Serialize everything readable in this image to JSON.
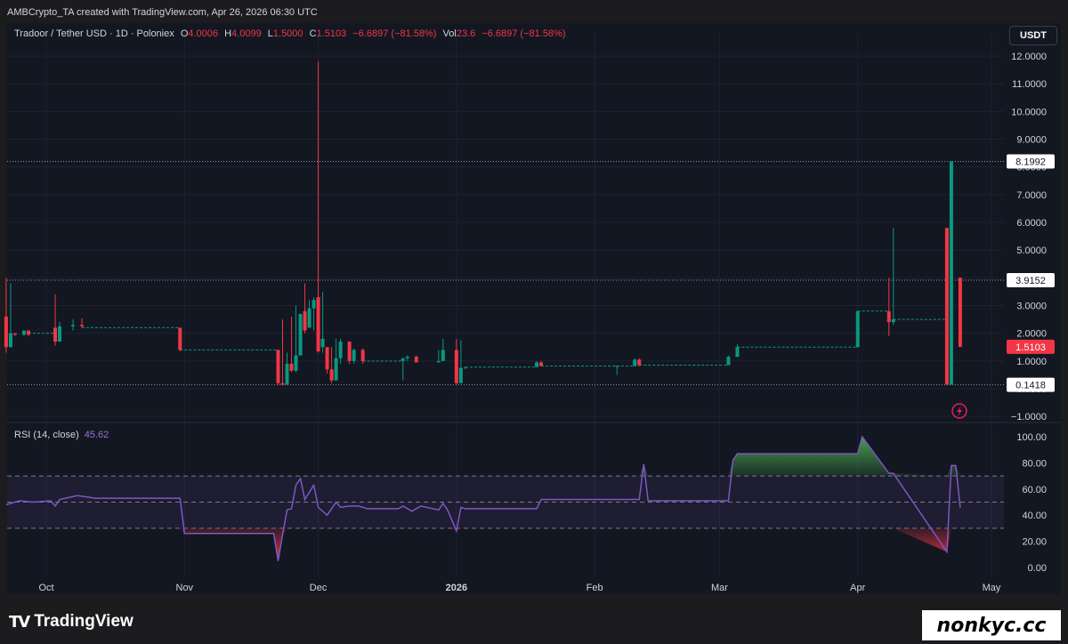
{
  "credit": "AMBCrypto_TA created with TradingView.com, Apr 26, 2026 06:30 UTC",
  "header": {
    "symbol": "Tradoor / Tether USD · 1D · Poloniex",
    "o_label": "O",
    "o_value": "4.0006",
    "h_label": "H",
    "h_value": "4.0099",
    "l_label": "L",
    "l_value": "1.5000",
    "c_label": "C",
    "c_value": "1.5103",
    "change": "−6.6897 (−81.58%)",
    "vol_label": "Vol",
    "vol_value": "23.6",
    "vol_change": "−6.6897 (−81.58%)",
    "currency_button": "USDT"
  },
  "colors": {
    "up": "#089981",
    "down": "#f23645",
    "rsi": "#7e57c2",
    "background": "#131722"
  },
  "chart_data": [
    {
      "type": "candlestick",
      "title": "Tradoor / Tether USD · 1D · Poloniex",
      "ylim": [
        -1.0,
        12.0
      ],
      "y_ticks": [
        "12.0000",
        "11.0000",
        "10.0000",
        "9.0000",
        "8.0000",
        "7.0000",
        "6.0000",
        "5.0000",
        "4.0000",
        "3.0000",
        "2.0000",
        "1.0000",
        "0.0000",
        "−1.0000"
      ],
      "x_ticks": [
        "Oct",
        "Nov",
        "Dec",
        "2026",
        "Feb",
        "Mar",
        "Apr",
        "May"
      ],
      "price_labels": [
        {
          "value": "8.1992",
          "kind": "line"
        },
        {
          "value": "3.9152",
          "kind": "line"
        },
        {
          "value": "1.5103",
          "kind": "last"
        },
        {
          "value": "0.1418",
          "kind": "line"
        }
      ],
      "candles": [
        {
          "date": "2025-09-22",
          "o": 2.6,
          "h": 4.0,
          "l": 1.3,
          "c": 1.5
        },
        {
          "date": "2025-09-23",
          "o": 1.5,
          "h": 3.8,
          "l": 1.5,
          "c": 2.0
        },
        {
          "date": "2025-09-24",
          "o": 2.0,
          "h": 2.0,
          "l": 1.9,
          "c": 1.95
        },
        {
          "date": "2025-09-26",
          "o": 1.95,
          "h": 2.1,
          "l": 1.9,
          "c": 2.1
        },
        {
          "date": "2025-09-27",
          "o": 2.1,
          "h": 2.1,
          "l": 1.9,
          "c": 1.95
        },
        {
          "date": "2025-10-03",
          "o": 2.2,
          "h": 3.4,
          "l": 1.55,
          "c": 1.7
        },
        {
          "date": "2025-10-04",
          "o": 1.7,
          "h": 2.4,
          "l": 1.7,
          "c": 2.25
        },
        {
          "date": "2025-10-07",
          "o": 2.25,
          "h": 2.5,
          "l": 2.1,
          "c": 2.3
        },
        {
          "date": "2025-10-09",
          "o": 2.3,
          "h": 2.55,
          "l": 2.2,
          "c": 2.25
        },
        {
          "date": "2025-10-31",
          "o": 2.2,
          "h": 2.2,
          "l": 1.35,
          "c": 1.4
        },
        {
          "date": "2025-11-22",
          "o": 1.4,
          "h": 1.4,
          "l": 0.15,
          "c": 0.2
        },
        {
          "date": "2025-11-23",
          "o": 0.2,
          "h": 2.5,
          "l": 0.12,
          "c": 0.14
        },
        {
          "date": "2025-11-24",
          "o": 0.15,
          "h": 1.3,
          "l": 0.15,
          "c": 0.9
        },
        {
          "date": "2025-11-25",
          "o": 0.9,
          "h": 2.6,
          "l": 0.6,
          "c": 0.65
        },
        {
          "date": "2025-11-26",
          "o": 0.65,
          "h": 3.0,
          "l": 0.6,
          "c": 1.2
        },
        {
          "date": "2025-11-27",
          "o": 1.2,
          "h": 2.7,
          "l": 1.2,
          "c": 2.7
        },
        {
          "date": "2025-11-28",
          "o": 2.8,
          "h": 3.8,
          "l": 2.0,
          "c": 2.1
        },
        {
          "date": "2025-11-29",
          "o": 2.2,
          "h": 3.2,
          "l": 2.2,
          "c": 2.9
        },
        {
          "date": "2025-11-30",
          "o": 2.9,
          "h": 3.3,
          "l": 2.1,
          "c": 3.2
        },
        {
          "date": "2025-12-01",
          "o": 3.3,
          "h": 11.8,
          "l": 1.3,
          "c": 1.35
        },
        {
          "date": "2025-12-02",
          "o": 1.5,
          "h": 3.5,
          "l": 1.3,
          "c": 1.8
        },
        {
          "date": "2025-12-03",
          "o": 1.5,
          "h": 1.5,
          "l": 0.55,
          "c": 0.7
        },
        {
          "date": "2025-12-04",
          "o": 0.7,
          "h": 1.5,
          "l": 0.2,
          "c": 0.3
        },
        {
          "date": "2025-12-05",
          "o": 0.3,
          "h": 1.8,
          "l": 0.3,
          "c": 1.1
        },
        {
          "date": "2025-12-06",
          "o": 1.1,
          "h": 1.8,
          "l": 0.9,
          "c": 1.7
        },
        {
          "date": "2025-12-08",
          "o": 1.7,
          "h": 1.7,
          "l": 0.9,
          "c": 1.0
        },
        {
          "date": "2025-12-09",
          "o": 1.0,
          "h": 1.45,
          "l": 0.9,
          "c": 1.4
        },
        {
          "date": "2025-12-11",
          "o": 1.4,
          "h": 1.45,
          "l": 0.9,
          "c": 1.0
        },
        {
          "date": "2025-12-20",
          "o": 1.0,
          "h": 1.1,
          "l": 0.3,
          "c": 1.1
        },
        {
          "date": "2025-12-21",
          "o": 1.1,
          "h": 1.2,
          "l": 1.0,
          "c": 1.15
        },
        {
          "date": "2025-12-23",
          "o": 1.15,
          "h": 1.2,
          "l": 0.95,
          "c": 0.95
        },
        {
          "date": "2025-12-28",
          "o": 0.95,
          "h": 1.4,
          "l": 0.95,
          "c": 1.0
        },
        {
          "date": "2025-12-29",
          "o": 1.0,
          "h": 1.8,
          "l": 1.0,
          "c": 1.4
        },
        {
          "date": "2026-01-01",
          "o": 1.4,
          "h": 1.8,
          "l": 0.15,
          "c": 0.2
        },
        {
          "date": "2026-01-02",
          "o": 0.2,
          "h": 1.75,
          "l": 0.2,
          "c": 0.75
        },
        {
          "date": "2026-01-03",
          "o": 0.75,
          "h": 0.8,
          "l": 0.7,
          "c": 0.78
        },
        {
          "date": "2026-01-19",
          "o": 0.78,
          "h": 1.0,
          "l": 0.78,
          "c": 0.95
        },
        {
          "date": "2026-01-20",
          "o": 0.95,
          "h": 1.0,
          "l": 0.8,
          "c": 0.82
        },
        {
          "date": "2026-02-06",
          "o": 0.82,
          "h": 0.82,
          "l": 0.5,
          "c": 0.82
        },
        {
          "date": "2026-02-10",
          "o": 0.82,
          "h": 1.1,
          "l": 0.8,
          "c": 1.05
        },
        {
          "date": "2026-02-11",
          "o": 1.05,
          "h": 1.1,
          "l": 0.8,
          "c": 0.85
        },
        {
          "date": "2026-03-03",
          "o": 0.85,
          "h": 1.2,
          "l": 0.85,
          "c": 1.15
        },
        {
          "date": "2026-03-05",
          "o": 1.15,
          "h": 1.6,
          "l": 1.15,
          "c": 1.5
        },
        {
          "date": "2026-04-01",
          "o": 1.5,
          "h": 2.8,
          "l": 1.5,
          "c": 2.8
        },
        {
          "date": "2026-04-08",
          "o": 2.8,
          "h": 4.0,
          "l": 1.9,
          "c": 2.4
        },
        {
          "date": "2026-04-09",
          "o": 2.4,
          "h": 5.8,
          "l": 2.3,
          "c": 2.5
        },
        {
          "date": "2026-04-21",
          "o": 5.8,
          "h": 5.8,
          "l": 0.15,
          "c": 0.15
        },
        {
          "date": "2026-04-22",
          "o": 0.15,
          "h": 8.2,
          "l": 0.14,
          "c": 8.2
        },
        {
          "date": "2026-04-24",
          "o": 4.0006,
          "h": 4.0099,
          "l": 1.5,
          "c": 1.5103
        }
      ],
      "dashed_levels": [
        {
          "from": "2025-09-27",
          "to": "2025-10-03",
          "value": 2.0
        },
        {
          "from": "2025-10-09",
          "to": "2025-10-31",
          "value": 2.2
        },
        {
          "from": "2025-10-31",
          "to": "2025-11-22",
          "value": 1.4
        },
        {
          "from": "2025-12-11",
          "to": "2025-12-20",
          "value": 1.0
        },
        {
          "from": "2026-01-03",
          "to": "2026-01-19",
          "value": 0.78
        },
        {
          "from": "2026-01-20",
          "to": "2026-02-10",
          "value": 0.82
        },
        {
          "from": "2026-02-11",
          "to": "2026-03-03",
          "value": 0.85
        },
        {
          "from": "2026-03-05",
          "to": "2026-04-01",
          "value": 1.5
        },
        {
          "from": "2026-04-01",
          "to": "2026-04-08",
          "value": 2.8
        },
        {
          "from": "2026-04-09",
          "to": "2026-04-21",
          "value": 2.5
        }
      ]
    },
    {
      "type": "line",
      "title": "RSI (14, close)",
      "last_value": "45.62",
      "ylim": [
        0,
        100
      ],
      "bands": [
        30,
        50,
        70
      ],
      "y_ticks": [
        "100.00",
        "80.00",
        "60.00",
        "40.00",
        "20.00",
        "0.00"
      ],
      "x": [
        "2025-09-22",
        "2025-09-25",
        "2025-09-28",
        "2025-10-02",
        "2025-10-03",
        "2025-10-04",
        "2025-10-08",
        "2025-10-12",
        "2025-10-31",
        "2025-11-01",
        "2025-11-21",
        "2025-11-22",
        "2025-11-23",
        "2025-11-24",
        "2025-11-25",
        "2025-11-26",
        "2025-11-27",
        "2025-11-28",
        "2025-11-30",
        "2025-12-01",
        "2025-12-03",
        "2025-12-05",
        "2025-12-06",
        "2025-12-08",
        "2025-12-10",
        "2025-12-12",
        "2025-12-19",
        "2025-12-20",
        "2025-12-22",
        "2025-12-24",
        "2025-12-28",
        "2025-12-29",
        "2025-12-30",
        "2026-01-01",
        "2026-01-02",
        "2026-01-03",
        "2026-01-19",
        "2026-01-20",
        "2026-02-11",
        "2026-02-12",
        "2026-02-13",
        "2026-03-03",
        "2026-03-04",
        "2026-03-05",
        "2026-04-01",
        "2026-04-02",
        "2026-04-08",
        "2026-04-09",
        "2026-04-21",
        "2026-04-22",
        "2026-04-23",
        "2026-04-24"
      ],
      "values": [
        48,
        51,
        50,
        51,
        47,
        52,
        55,
        53,
        53,
        26,
        26,
        5,
        25,
        44,
        45,
        63,
        68,
        52,
        63,
        46,
        40,
        50,
        46,
        47,
        47,
        45,
        45,
        47,
        43,
        47,
        44,
        49,
        44,
        28,
        46,
        45,
        45,
        52,
        52,
        79,
        51,
        51,
        82,
        87,
        87,
        100,
        72,
        72,
        12,
        78,
        78,
        45.62
      ]
    }
  ]
}
